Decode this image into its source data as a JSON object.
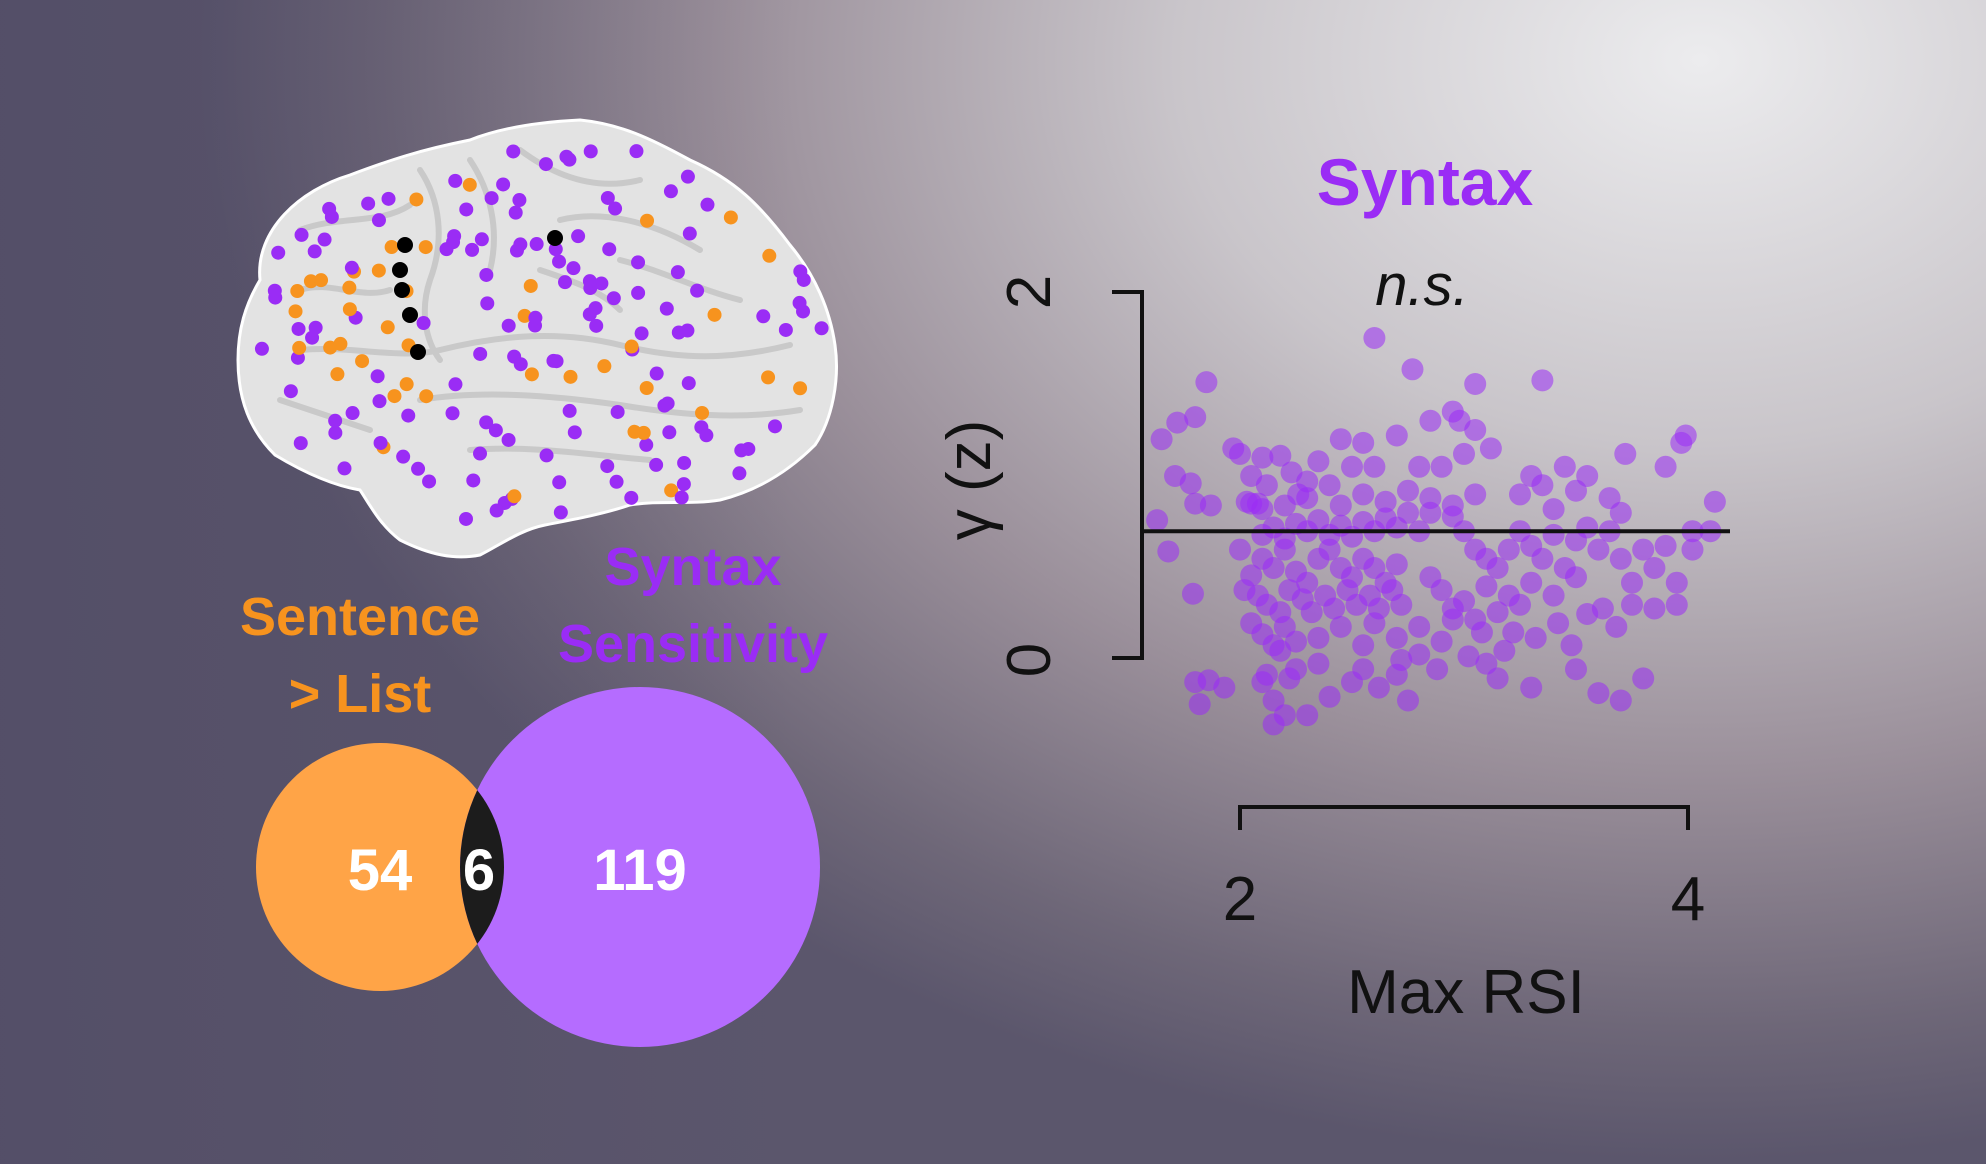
{
  "colors": {
    "purple": "#9a2cf5",
    "orange": "#f7931e",
    "venn_orange": "#ffa447",
    "venn_purple": "#b56cff",
    "overlap": "#1c1c1c",
    "axis": "#111111"
  },
  "brain": {
    "description_icon": "brain-icon",
    "electrode_colors": [
      "#9a2cf5",
      "#f7931e",
      "#000000"
    ]
  },
  "venn": {
    "left_label_line1": "Sentence",
    "left_label_line2": "> List",
    "right_label_line1": "Syntax",
    "right_label_line2": "Sensitivity",
    "left_count": "54",
    "overlap_count": "6",
    "right_count": "119"
  },
  "chart_data": {
    "type": "scatter",
    "title": "Syntax",
    "subtitle": "n.s.",
    "xlabel": "Max RSI",
    "ylabel": "γ (z)",
    "x_ticks": [
      "2",
      "4"
    ],
    "y_ticks": [
      "0",
      "2"
    ],
    "xlim": [
      1.6,
      4.2
    ],
    "ylim": [
      -0.6,
      2.4
    ],
    "reference_line_y": 0.7,
    "grid": false,
    "point_color": "#9a2cf5",
    "points": [
      [
        1.63,
        0.76
      ],
      [
        1.68,
        0.59
      ],
      [
        1.71,
        1.0
      ],
      [
        1.65,
        1.2
      ],
      [
        1.72,
        1.29
      ],
      [
        1.8,
        1.32
      ],
      [
        1.85,
        1.51
      ],
      [
        1.78,
        0.96
      ],
      [
        1.8,
        0.85
      ],
      [
        1.87,
        0.84
      ],
      [
        1.79,
        0.36
      ],
      [
        1.82,
        -0.24
      ],
      [
        1.86,
        -0.11
      ],
      [
        1.8,
        -0.12
      ],
      [
        1.93,
        -0.15
      ],
      [
        1.97,
        1.15
      ],
      [
        2.0,
        1.12
      ],
      [
        2.05,
        1.0
      ],
      [
        2.1,
        1.1
      ],
      [
        2.12,
        0.95
      ],
      [
        2.08,
        0.85
      ],
      [
        2.03,
        0.86
      ],
      [
        2.18,
        1.11
      ],
      [
        2.2,
        0.84
      ],
      [
        2.23,
        1.02
      ],
      [
        2.26,
        0.9
      ],
      [
        2.3,
        0.97
      ],
      [
        2.35,
        1.08
      ],
      [
        2.4,
        0.95
      ],
      [
        2.0,
        0.6
      ],
      [
        2.05,
        0.46
      ],
      [
        2.1,
        0.55
      ],
      [
        2.15,
        0.5
      ],
      [
        2.2,
        0.6
      ],
      [
        2.25,
        0.48
      ],
      [
        2.3,
        0.42
      ],
      [
        2.35,
        0.55
      ],
      [
        2.4,
        0.6
      ],
      [
        2.45,
        0.5
      ],
      [
        2.5,
        0.45
      ],
      [
        2.55,
        0.55
      ],
      [
        2.6,
        0.5
      ],
      [
        2.65,
        0.42
      ],
      [
        2.7,
        0.52
      ],
      [
        2.02,
        0.38
      ],
      [
        2.08,
        0.35
      ],
      [
        2.12,
        0.3
      ],
      [
        2.18,
        0.26
      ],
      [
        2.22,
        0.38
      ],
      [
        2.28,
        0.33
      ],
      [
        2.32,
        0.26
      ],
      [
        2.38,
        0.35
      ],
      [
        2.42,
        0.28
      ],
      [
        2.48,
        0.38
      ],
      [
        2.52,
        0.3
      ],
      [
        2.58,
        0.35
      ],
      [
        2.62,
        0.28
      ],
      [
        2.68,
        0.38
      ],
      [
        2.72,
        0.3
      ],
      [
        2.1,
        0.68
      ],
      [
        2.15,
        0.72
      ],
      [
        2.2,
        0.66
      ],
      [
        2.25,
        0.74
      ],
      [
        2.3,
        0.7
      ],
      [
        2.35,
        0.76
      ],
      [
        2.4,
        0.68
      ],
      [
        2.45,
        0.73
      ],
      [
        2.5,
        0.67
      ],
      [
        2.55,
        0.75
      ],
      [
        2.6,
        0.7
      ],
      [
        2.65,
        0.77
      ],
      [
        2.7,
        0.72
      ],
      [
        2.75,
        0.8
      ],
      [
        2.8,
        0.7
      ],
      [
        2.05,
        0.85
      ],
      [
        2.1,
        0.82
      ],
      [
        2.3,
        0.88
      ],
      [
        2.45,
        0.84
      ],
      [
        2.55,
        0.9
      ],
      [
        2.65,
        0.86
      ],
      [
        2.75,
        0.92
      ],
      [
        2.85,
        0.88
      ],
      [
        2.95,
        0.84
      ],
      [
        3.05,
        0.9
      ],
      [
        2.05,
        0.2
      ],
      [
        2.1,
        0.14
      ],
      [
        2.15,
        0.08
      ],
      [
        2.2,
        0.18
      ],
      [
        2.25,
        0.1
      ],
      [
        2.35,
        0.12
      ],
      [
        2.45,
        0.18
      ],
      [
        2.55,
        0.08
      ],
      [
        2.6,
        0.2
      ],
      [
        2.7,
        0.12
      ],
      [
        2.8,
        0.18
      ],
      [
        2.9,
        0.1
      ],
      [
        2.95,
        0.22
      ],
      [
        2.1,
        -0.12
      ],
      [
        2.15,
        -0.22
      ],
      [
        2.2,
        -0.3
      ],
      [
        2.25,
        -0.05
      ],
      [
        2.12,
        -0.08
      ],
      [
        2.35,
        -0.02
      ],
      [
        2.4,
        -0.2
      ],
      [
        2.55,
        -0.05
      ],
      [
        2.7,
        -0.08
      ],
      [
        2.75,
        -0.22
      ],
      [
        3.1,
        -0.02
      ],
      [
        3.3,
        -0.15
      ],
      [
        3.5,
        -0.05
      ],
      [
        3.6,
        -0.18
      ],
      [
        3.7,
        -0.22
      ],
      [
        3.8,
        -0.1
      ],
      [
        3.15,
        -0.1
      ],
      [
        2.45,
        1.2
      ],
      [
        2.7,
        1.22
      ],
      [
        2.85,
        1.3
      ],
      [
        2.95,
        1.35
      ],
      [
        3.05,
        1.25
      ],
      [
        3.12,
        1.15
      ],
      [
        2.9,
        1.05
      ],
      [
        3.0,
        1.12
      ],
      [
        2.8,
        1.05
      ],
      [
        2.6,
        1.05
      ],
      [
        2.55,
        1.18
      ],
      [
        2.98,
        1.3
      ],
      [
        2.5,
        1.05
      ],
      [
        2.85,
        0.8
      ],
      [
        2.95,
        0.78
      ],
      [
        3.0,
        0.7
      ],
      [
        3.05,
        0.6
      ],
      [
        3.1,
        0.55
      ],
      [
        3.15,
        0.5
      ],
      [
        3.2,
        0.6
      ],
      [
        3.25,
        0.7
      ],
      [
        3.3,
        0.62
      ],
      [
        3.35,
        0.55
      ],
      [
        3.4,
        0.68
      ],
      [
        3.45,
        0.5
      ],
      [
        3.5,
        0.65
      ],
      [
        3.55,
        0.72
      ],
      [
        3.6,
        0.6
      ],
      [
        2.85,
        0.45
      ],
      [
        2.9,
        0.38
      ],
      [
        3.0,
        0.32
      ],
      [
        3.1,
        0.4
      ],
      [
        3.2,
        0.35
      ],
      [
        3.3,
        0.42
      ],
      [
        3.4,
        0.35
      ],
      [
        3.5,
        0.45
      ],
      [
        2.95,
        0.28
      ],
      [
        3.05,
        0.22
      ],
      [
        3.15,
        0.26
      ],
      [
        3.25,
        0.3
      ],
      [
        3.25,
        0.9
      ],
      [
        3.35,
        0.95
      ],
      [
        3.45,
        1.05
      ],
      [
        3.55,
        1.0
      ],
      [
        3.65,
        0.88
      ],
      [
        3.7,
        0.8
      ],
      [
        3.3,
        1.0
      ],
      [
        3.4,
        0.82
      ],
      [
        3.5,
        0.92
      ],
      [
        3.72,
        1.12
      ],
      [
        3.35,
        1.52
      ],
      [
        3.05,
        1.5
      ],
      [
        2.77,
        1.58
      ],
      [
        2.6,
        1.75
      ],
      [
        3.65,
        0.7
      ],
      [
        3.7,
        0.55
      ],
      [
        3.75,
        0.42
      ],
      [
        3.8,
        0.6
      ],
      [
        3.85,
        0.5
      ],
      [
        3.9,
        0.62
      ],
      [
        3.95,
        0.42
      ],
      [
        3.75,
        0.3
      ],
      [
        3.85,
        0.28
      ],
      [
        3.95,
        0.3
      ],
      [
        4.02,
        0.7
      ],
      [
        4.02,
        0.6
      ],
      [
        4.1,
        0.7
      ],
      [
        4.12,
        0.86
      ],
      [
        3.9,
        1.05
      ],
      [
        3.97,
        1.18
      ],
      [
        3.99,
        1.22
      ],
      [
        2.3,
        -0.3
      ],
      [
        2.15,
        -0.35
      ],
      [
        2.18,
        0.05
      ],
      [
        2.22,
        -0.1
      ],
      [
        2.5,
        -0.12
      ],
      [
        2.62,
        -0.15
      ],
      [
        2.72,
        0.0
      ],
      [
        2.8,
        0.03
      ],
      [
        2.88,
        -0.05
      ],
      [
        3.02,
        0.02
      ],
      [
        3.08,
        0.15
      ],
      [
        3.18,
        0.05
      ],
      [
        3.22,
        0.15
      ],
      [
        3.32,
        0.12
      ],
      [
        3.42,
        0.2
      ],
      [
        3.48,
        0.08
      ],
      [
        3.55,
        0.25
      ],
      [
        3.62,
        0.28
      ],
      [
        3.68,
        0.18
      ]
    ]
  }
}
